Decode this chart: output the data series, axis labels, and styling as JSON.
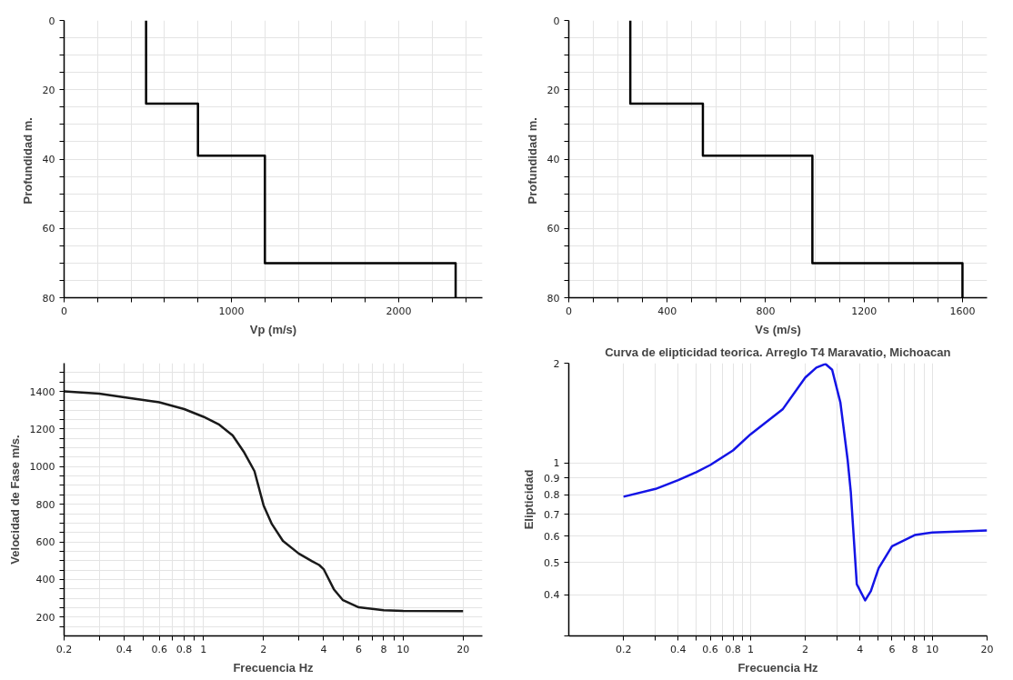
{
  "chart_data": [
    {
      "type": "line",
      "xlabel": "Vp (m/s)",
      "ylabel": "Profundidad  m.",
      "xlim": [
        0,
        2500
      ],
      "ylim": [
        80,
        0
      ],
      "xticks": [
        0,
        {
          "value": 200,
          "label": null
        },
        {
          "value": 400,
          "label": null
        },
        {
          "value": 600,
          "label": null
        },
        {
          "value": 800,
          "label": null
        },
        1000,
        {
          "value": 1200,
          "label": null
        },
        {
          "value": 1400,
          "label": null
        },
        {
          "value": 1600,
          "label": null
        },
        {
          "value": 1800,
          "label": null
        },
        2000,
        {
          "value": 2200,
          "label": null
        },
        {
          "value": 2400,
          "label": null
        }
      ],
      "yticks": [
        0,
        {
          "value": 5,
          "label": null
        },
        {
          "value": 10,
          "label": null
        },
        {
          "value": 15,
          "label": null
        },
        20,
        {
          "value": 25,
          "label": null
        },
        {
          "value": 30,
          "label": null
        },
        {
          "value": 35,
          "label": null
        },
        40,
        {
          "value": 45,
          "label": null
        },
        {
          "value": 50,
          "label": null
        },
        {
          "value": 55,
          "label": null
        },
        60,
        {
          "value": 65,
          "label": null
        },
        {
          "value": 70,
          "label": null
        },
        {
          "value": 75,
          "label": null
        },
        80
      ],
      "grid": true,
      "x": [
        490,
        490,
        800,
        800,
        1200,
        1200,
        2340,
        2340
      ],
      "series": [
        {
          "color": "#000000",
          "values": [
            0,
            24,
            24,
            39,
            39,
            70,
            70,
            80
          ]
        }
      ]
    },
    {
      "type": "line",
      "xlabel": "Vs (m/s)",
      "ylabel": "Profundidad  m.",
      "xlim": [
        0,
        1700
      ],
      "ylim": [
        80,
        0
      ],
      "xticks": [
        0,
        {
          "value": 100,
          "label": null
        },
        {
          "value": 200,
          "label": null
        },
        {
          "value": 300,
          "label": null
        },
        400,
        {
          "value": 500,
          "label": null
        },
        {
          "value": 600,
          "label": null
        },
        {
          "value": 700,
          "label": null
        },
        800,
        {
          "value": 900,
          "label": null
        },
        {
          "value": 1000,
          "label": null
        },
        {
          "value": 1100,
          "label": null
        },
        1200,
        {
          "value": 1300,
          "label": null
        },
        {
          "value": 1400,
          "label": null
        },
        {
          "value": 1500,
          "label": null
        },
        1600
      ],
      "yticks": [
        0,
        {
          "value": 5,
          "label": null
        },
        {
          "value": 10,
          "label": null
        },
        {
          "value": 15,
          "label": null
        },
        20,
        {
          "value": 25,
          "label": null
        },
        {
          "value": 30,
          "label": null
        },
        {
          "value": 35,
          "label": null
        },
        40,
        {
          "value": 45,
          "label": null
        },
        {
          "value": 50,
          "label": null
        },
        {
          "value": 55,
          "label": null
        },
        60,
        {
          "value": 65,
          "label": null
        },
        {
          "value": 70,
          "label": null
        },
        {
          "value": 75,
          "label": null
        },
        80
      ],
      "grid": true,
      "x": [
        250,
        250,
        545,
        545,
        990,
        990,
        1600,
        1600
      ],
      "series": [
        {
          "color": "#000000",
          "values": [
            0,
            24,
            24,
            39,
            39,
            70,
            70,
            80
          ]
        }
      ]
    },
    {
      "type": "line",
      "xlabel": "Frecuencia Hz",
      "ylabel": "Velocidad de Fase m/s.",
      "log": "x",
      "xlim": [
        0.2,
        25
      ],
      "ylim": [
        100,
        1550
      ],
      "xticks": [
        0.2,
        {
          "value": 0.3,
          "label": null
        },
        0.4,
        {
          "value": 0.5,
          "label": null
        },
        0.6,
        {
          "value": 0.7,
          "label": null
        },
        0.8,
        {
          "value": 0.9,
          "label": null
        },
        1,
        2,
        {
          "value": 3,
          "label": null
        },
        4,
        {
          "value": 5,
          "label": null
        },
        6,
        {
          "value": 7,
          "label": null
        },
        8,
        {
          "value": 9,
          "label": null
        },
        10,
        20
      ],
      "yticks": [
        {
          "value": 150,
          "label": null
        },
        200,
        {
          "value": 250,
          "label": null
        },
        {
          "value": 300,
          "label": null
        },
        {
          "value": 350,
          "label": null
        },
        400,
        {
          "value": 450,
          "label": null
        },
        {
          "value": 500,
          "label": null
        },
        {
          "value": 550,
          "label": null
        },
        600,
        {
          "value": 650,
          "label": null
        },
        {
          "value": 700,
          "label": null
        },
        {
          "value": 750,
          "label": null
        },
        800,
        {
          "value": 850,
          "label": null
        },
        {
          "value": 900,
          "label": null
        },
        {
          "value": 950,
          "label": null
        },
        1000,
        {
          "value": 1050,
          "label": null
        },
        {
          "value": 1100,
          "label": null
        },
        {
          "value": 1150,
          "label": null
        },
        1200,
        {
          "value": 1250,
          "label": null
        },
        {
          "value": 1300,
          "label": null
        },
        {
          "value": 1350,
          "label": null
        },
        1400,
        {
          "value": 1450,
          "label": null
        },
        {
          "value": 1500,
          "label": null
        }
      ],
      "grid": true,
      "x": [
        0.2,
        0.3,
        0.4,
        0.6,
        0.8,
        1,
        1.2,
        1.4,
        1.6,
        1.8,
        2,
        2.2,
        2.5,
        3,
        3.5,
        3.8,
        4,
        4.5,
        5,
        6,
        8,
        10,
        20
      ],
      "series": [
        {
          "color": "#1a1a1a",
          "values": [
            1400,
            1388,
            1369,
            1342,
            1306,
            1265,
            1223,
            1166,
            1075,
            976,
            794,
            695,
            605,
            538,
            497,
            477,
            455,
            348,
            290,
            252,
            236,
            233,
            232
          ]
        }
      ]
    },
    {
      "type": "line",
      "title": "Curva de elipticidad teorica. Arreglo T4 Maravatio, Michoacan",
      "xlabel": "Frecuencia Hz",
      "ylabel": "Elipticidad",
      "log": "xy",
      "xlim": [
        0.1,
        20
      ],
      "ylim": [
        0.3,
        2
      ],
      "xticks": [
        0.2,
        {
          "value": 0.3,
          "label": null
        },
        0.4,
        {
          "value": 0.5,
          "label": null
        },
        0.6,
        {
          "value": 0.7,
          "label": null
        },
        0.8,
        {
          "value": 0.9,
          "label": null
        },
        1,
        2,
        {
          "value": 3,
          "label": null
        },
        4,
        {
          "value": 5,
          "label": null
        },
        6,
        {
          "value": 7,
          "label": null
        },
        8,
        {
          "value": 9,
          "label": null
        },
        10,
        20
      ],
      "yticks": [
        {
          "value": 0.3,
          "label": null
        },
        0.4,
        0.5,
        0.6,
        0.7,
        0.8,
        0.9,
        1,
        2
      ],
      "grid": true,
      "x": [
        0.2,
        0.3,
        0.4,
        0.5,
        0.6,
        0.8,
        1,
        1.5,
        2,
        2.3,
        2.58,
        2.81,
        3.12,
        3.42,
        3.56,
        3.84,
        4.27,
        4.59,
        5.06,
        6,
        8,
        10,
        20
      ],
      "series": [
        {
          "color": "#1414e6",
          "values": [
            0.79,
            0.834,
            0.887,
            0.936,
            0.985,
            1.09,
            1.22,
            1.45,
            1.81,
            1.94,
            1.99,
            1.91,
            1.52,
            1.02,
            0.815,
            0.43,
            0.384,
            0.41,
            0.48,
            0.56,
            0.605,
            0.616,
            0.625
          ]
        }
      ]
    }
  ]
}
